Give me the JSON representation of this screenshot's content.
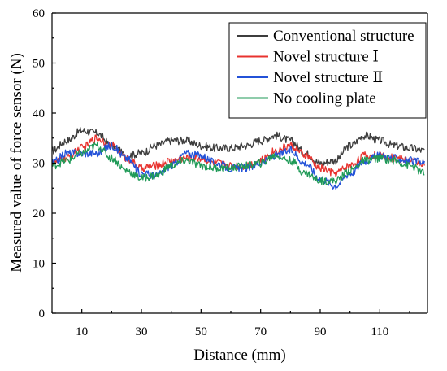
{
  "chart_data": {
    "type": "line",
    "xlabel": "Distance (mm)",
    "ylabel": "Measured value of force sensor (N)",
    "xlim": [
      0,
      126
    ],
    "ylim": [
      0,
      60
    ],
    "x_ticks": [
      10,
      30,
      50,
      70,
      90,
      110
    ],
    "x_tick_labels": [
      "10",
      "30",
      "50",
      "70",
      "90",
      "110"
    ],
    "y_ticks": [
      0,
      10,
      20,
      30,
      40,
      50,
      60
    ],
    "y_tick_labels": [
      "0",
      "10",
      "20",
      "30",
      "40",
      "50",
      "60"
    ],
    "grid": false,
    "legend_position": "top-right",
    "x": [
      0,
      5,
      10,
      15,
      20,
      25,
      30,
      35,
      40,
      45,
      50,
      55,
      60,
      65,
      70,
      75,
      80,
      85,
      90,
      95,
      100,
      105,
      110,
      115,
      120,
      125
    ],
    "series": [
      {
        "name": "Conventional structure",
        "color": "#3d3d3d",
        "values": [
          32.5,
          34.5,
          36.5,
          36.0,
          33.5,
          31.5,
          32.0,
          33.5,
          34.5,
          34.5,
          33.5,
          33.0,
          33.0,
          33.5,
          34.5,
          35.5,
          34.5,
          32.0,
          30.0,
          30.5,
          33.5,
          35.5,
          34.5,
          33.5,
          33.0,
          32.5
        ]
      },
      {
        "name": "Novel structure Ⅰ",
        "color": "#e8332f",
        "values": [
          30.0,
          31.0,
          33.0,
          35.0,
          33.5,
          31.0,
          29.0,
          29.5,
          30.5,
          31.0,
          31.0,
          30.0,
          29.5,
          29.5,
          30.5,
          32.5,
          33.5,
          31.5,
          29.0,
          28.0,
          29.5,
          31.5,
          31.5,
          31.0,
          30.5,
          30.0
        ]
      },
      {
        "name": "Novel structure Ⅱ",
        "color": "#2352d8",
        "values": [
          30.0,
          32.0,
          32.0,
          32.0,
          33.5,
          31.0,
          28.0,
          27.5,
          29.5,
          32.0,
          31.5,
          30.0,
          29.0,
          29.0,
          30.0,
          31.5,
          32.5,
          30.0,
          27.0,
          25.5,
          28.0,
          30.5,
          31.5,
          31.0,
          30.5,
          30.0
        ]
      },
      {
        "name": "No cooling plate",
        "color": "#1f9a57",
        "values": [
          29.5,
          30.5,
          32.0,
          33.5,
          31.0,
          28.5,
          27.0,
          27.5,
          29.5,
          30.5,
          29.5,
          29.0,
          29.0,
          29.5,
          30.0,
          31.5,
          30.5,
          28.0,
          26.5,
          26.5,
          28.5,
          30.5,
          31.0,
          30.5,
          29.5,
          28.0
        ]
      }
    ]
  }
}
